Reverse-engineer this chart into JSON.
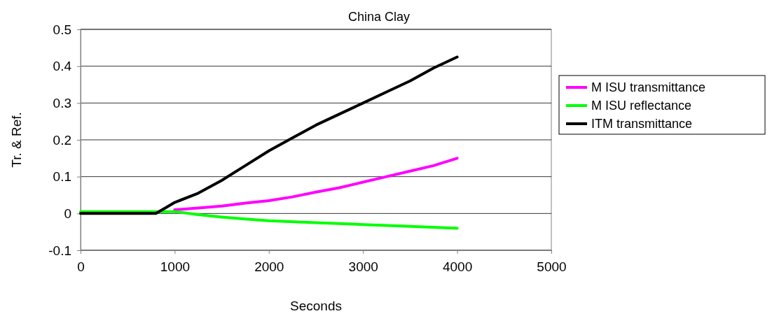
{
  "chart_data": {
    "type": "line",
    "title": "China Clay",
    "xlabel": "Seconds",
    "ylabel": "Tr. & Ref.",
    "xlim": [
      0,
      5000
    ],
    "xticks": [
      0,
      1000,
      2000,
      3000,
      4000,
      5000
    ],
    "ylim": [
      -0.1,
      0.5
    ],
    "yticks": [
      -0.1,
      0,
      0.1,
      0.2,
      0.3,
      0.4,
      0.5
    ],
    "grid": "y",
    "legend": "right",
    "marker": "none",
    "line_style": "solid",
    "series": [
      {
        "name": "M ISU transmittance",
        "color": "#ff00ff",
        "x": [
          1000,
          1250,
          1500,
          1750,
          2000,
          2250,
          2500,
          2750,
          3000,
          3250,
          3500,
          3750,
          4000
        ],
        "values": [
          0.01,
          0.015,
          0.02,
          0.028,
          0.035,
          0.045,
          0.058,
          0.07,
          0.085,
          0.1,
          0.115,
          0.13,
          0.15
        ]
      },
      {
        "name": "M ISU reflectance",
        "color": "#00ff00",
        "x": [
          0,
          400,
          800,
          1000,
          1250,
          1500,
          1750,
          2000,
          2500,
          3000,
          3500,
          4000
        ],
        "values": [
          0.005,
          0.005,
          0.005,
          0.005,
          -0.003,
          -0.01,
          -0.015,
          -0.02,
          -0.025,
          -0.03,
          -0.035,
          -0.04
        ]
      },
      {
        "name": "ITM transmittance",
        "color": "#000000",
        "x": [
          0,
          400,
          800,
          900,
          1000,
          1250,
          1500,
          1750,
          2000,
          2250,
          2500,
          2750,
          3000,
          3250,
          3500,
          3750,
          4000
        ],
        "values": [
          0,
          0,
          0,
          0.015,
          0.03,
          0.055,
          0.09,
          0.13,
          0.17,
          0.205,
          0.24,
          0.27,
          0.3,
          0.33,
          0.36,
          0.395,
          0.425
        ]
      }
    ]
  }
}
